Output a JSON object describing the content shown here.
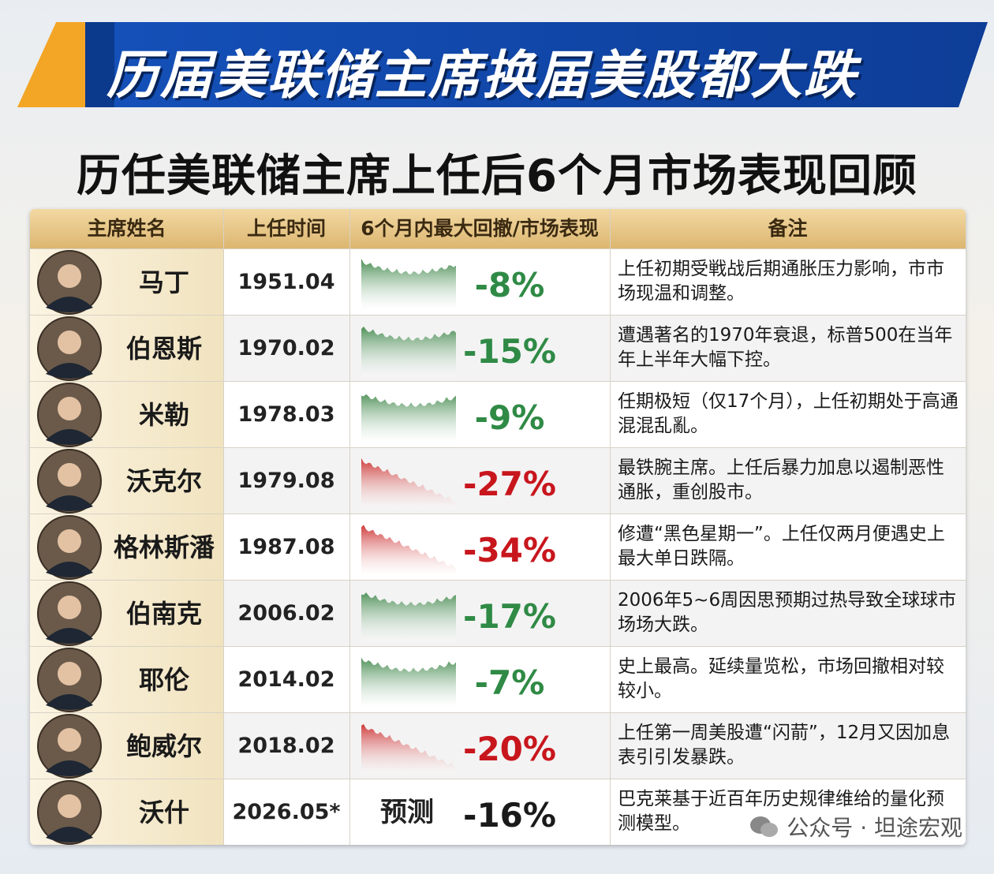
{
  "header": {
    "title": "历届美联储主席换届美股都大跌",
    "subtitle": "历任美联储主席上任后6个月市场表现回顾"
  },
  "table": {
    "columns": [
      "主席姓名",
      "上任时间",
      "6个月内最大回撤/市场表现",
      "备注"
    ],
    "rows": [
      {
        "name": "马丁",
        "date": "1951.04",
        "change": "-8%",
        "color": "#2f8a45",
        "note": "上任初期受戦战后期通胀压力影响，市市场现温和调整。"
      },
      {
        "name": "伯恩斯",
        "date": "1970.02",
        "change": "-15%",
        "color": "#2f8a45",
        "note": "遭遇著名的1970年衰退，标普500在当年年上半年大幅下控。"
      },
      {
        "name": "米勒",
        "date": "1978.03",
        "change": "-9%",
        "color": "#2f8a45",
        "note": "任期极短（仅17个月），上任初期处于高通混混乱亂。"
      },
      {
        "name": "沃克尔",
        "date": "1979.08",
        "change": "-27%",
        "color": "#c8161d",
        "note": "最铁腕主席。上任后暴力加息以遏制恶性通胀，重创股市。"
      },
      {
        "name": "格林斯潘",
        "date": "1987.08",
        "change": "-34%",
        "color": "#c8161d",
        "note": "修遭“黑色星期一”。上任仅两月便遇史上最大单日跌隔。"
      },
      {
        "name": "伯南克",
        "date": "2006.02",
        "change": "-17%",
        "color": "#2f8a45",
        "note": "2006年5~6周因思预期过热导致全球球市场场大跌。"
      },
      {
        "name": "耶伦",
        "date": "2014.02",
        "change": "-7%",
        "color": "#2f8a45",
        "note": "史上最高。延续量览松，市场回撤相对较较小。"
      },
      {
        "name": "鲍威尔",
        "date": "2018.02",
        "change": "-20%",
        "color": "#c8161d",
        "note": "上任第一周美股遭“闪葥”，12月又因加息表引引发暴跌。"
      },
      {
        "name": "沃什",
        "date": "2026.05*",
        "change": "-16%",
        "color": "#1a1a1a",
        "label": "预测",
        "note": "巴克莱基于近百年历史规律维给的量化预测模型。"
      }
    ]
  },
  "watermark": "公众号 · 坦途宏观"
}
